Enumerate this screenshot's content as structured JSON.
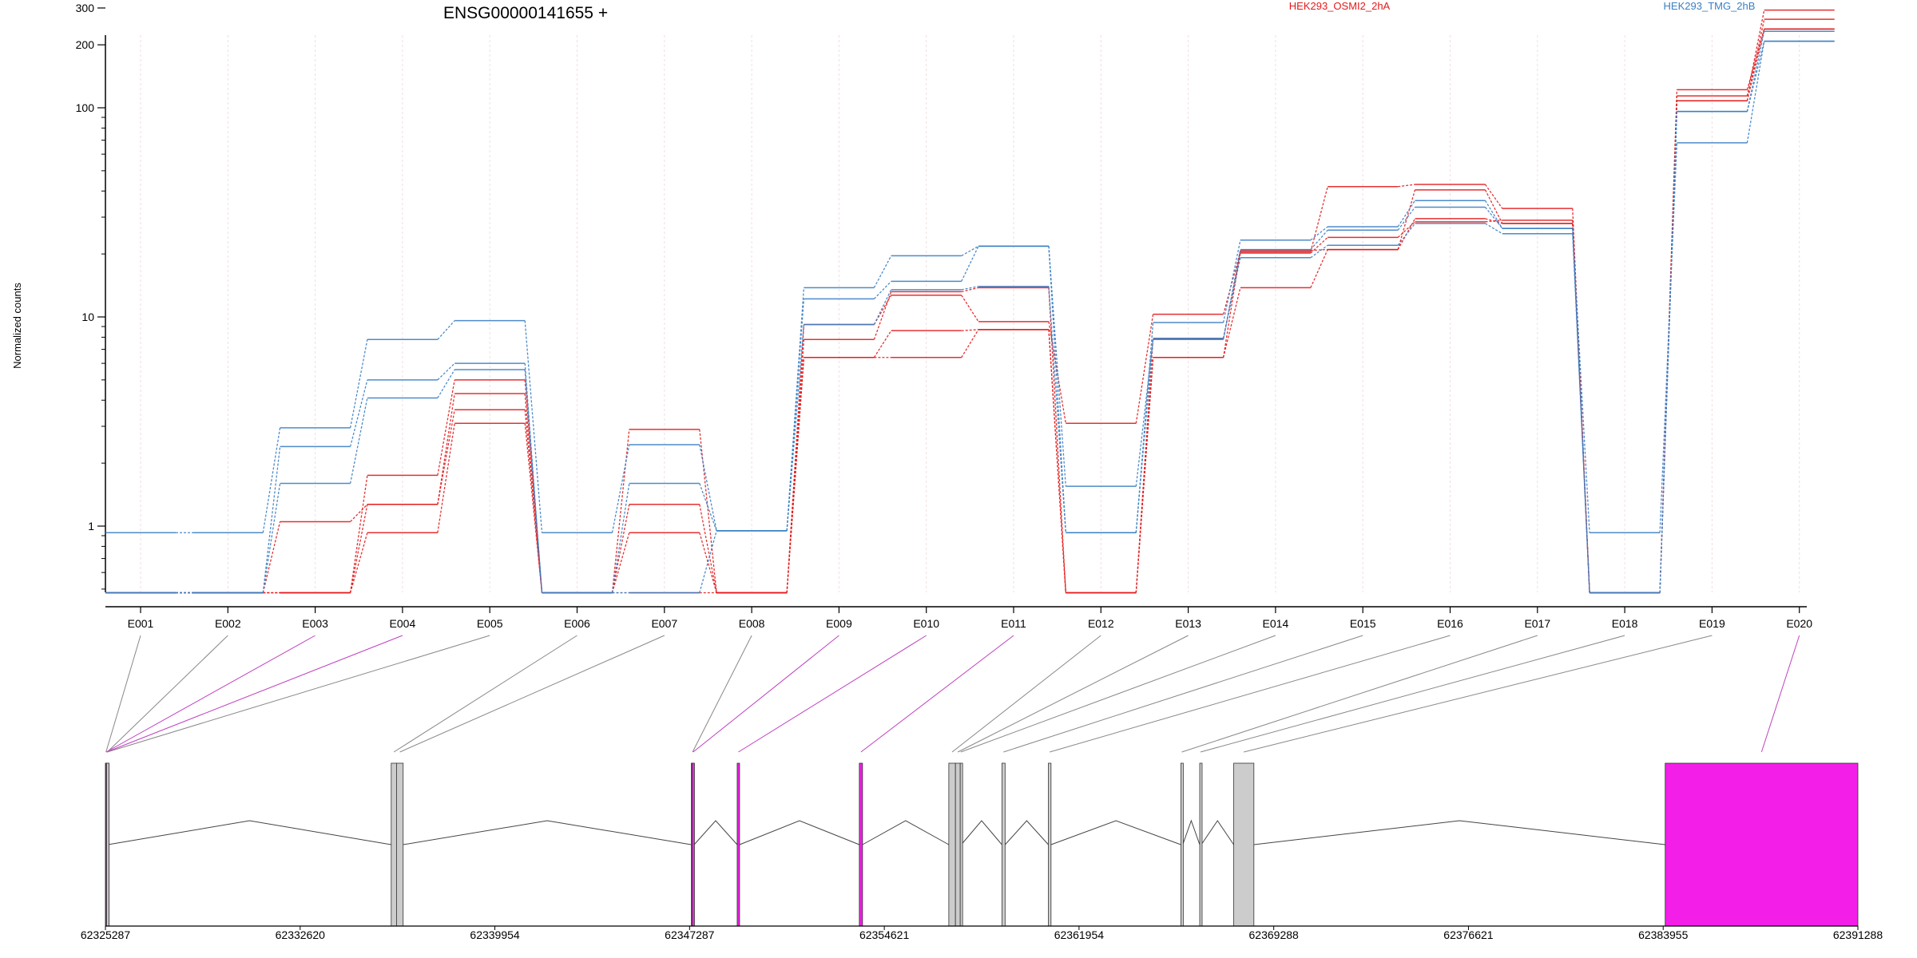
{
  "chart_data": {
    "type": "line",
    "title": "ENSG00000141655 +",
    "ylabel": "Normalized counts",
    "yscale": "log",
    "ylim": [
      0.5,
      400
    ],
    "yticks": [
      1,
      10,
      100,
      200,
      300
    ],
    "ytick_labels": [
      "1",
      "10",
      "100",
      "200",
      "300"
    ],
    "categories": [
      "E001",
      "E002",
      "E003",
      "E004",
      "E005",
      "E006",
      "E007",
      "E008",
      "E009",
      "E010",
      "E011",
      "E012",
      "E013",
      "E014",
      "E015",
      "E016",
      "E017",
      "E018",
      "E019",
      "E020"
    ],
    "legend": [
      {
        "label": "HEK293_OSMI2_2hA",
        "color": "#e31a1c"
      },
      {
        "label": "HEK293_TMG_2hB",
        "color": "#3a7fc4"
      }
    ],
    "series": [
      {
        "group": "OSMI2",
        "color": "#e31a1c",
        "values": [
          0.48,
          0.48,
          0.48,
          0.93,
          3.1,
          0.48,
          2.9,
          0.48,
          9.2,
          12.7,
          9.5,
          3.1,
          10.3,
          20.5,
          42,
          43,
          33,
          0.48,
          114,
          293
        ]
      },
      {
        "group": "OSMI2",
        "color": "#e31a1c",
        "values": [
          0.48,
          0.48,
          1.05,
          1.27,
          3.6,
          0.48,
          1.27,
          0.48,
          7.8,
          13.2,
          13.8,
          0.48,
          7.9,
          20.2,
          24,
          28.5,
          29,
          0.48,
          108,
          265
        ]
      },
      {
        "group": "OSMI2",
        "color": "#e31a1c",
        "values": [
          0.48,
          0.48,
          0.48,
          1.75,
          5.0,
          0.48,
          0.93,
          0.48,
          6.4,
          8.6,
          8.7,
          0.48,
          6.4,
          13.8,
          21,
          40.5,
          28,
          0.48,
          122,
          238
        ]
      },
      {
        "group": "OSMI2",
        "color": "#e31a1c",
        "values": [
          0.48,
          0.48,
          0.48,
          1.27,
          4.3,
          0.48,
          0.48,
          0.48,
          6.4,
          6.4,
          8.7,
          0.48,
          6.4,
          20.8,
          21,
          29.5,
          28,
          0.48,
          108,
          238
        ]
      },
      {
        "group": "TMG",
        "color": "#3a7fc4",
        "values": [
          0.93,
          0.93,
          2.95,
          7.8,
          9.6,
          0.93,
          2.45,
          0.95,
          13.8,
          19.6,
          21.8,
          0.93,
          9.4,
          23.3,
          27,
          36,
          26.5,
          0.93,
          68,
          208
        ]
      },
      {
        "group": "TMG",
        "color": "#3a7fc4",
        "values": [
          0.48,
          0.48,
          2.4,
          5.0,
          6.0,
          0.48,
          1.6,
          0.95,
          12.2,
          14.8,
          21.8,
          1.55,
          7.8,
          21,
          26,
          33.5,
          26.5,
          0.48,
          96,
          232
        ]
      },
      {
        "group": "TMG",
        "color": "#3a7fc4",
        "values": [
          0.48,
          0.48,
          1.6,
          4.1,
          5.6,
          0.48,
          0.48,
          0.95,
          9.2,
          13.5,
          14.0,
          0.93,
          7.9,
          19.2,
          22,
          28,
          25,
          0.48,
          96,
          208
        ]
      }
    ],
    "genomic_axis": {
      "tick_labels": [
        "62325287",
        "62332620",
        "62339954",
        "62347287",
        "62354621",
        "62361954",
        "62369288",
        "62376621",
        "62383955",
        "62391288"
      ],
      "range": [
        62325287,
        62391288
      ]
    },
    "exons": [
      {
        "id": "E001",
        "start": 62325287,
        "end": 62325330,
        "highlight": false
      },
      {
        "id": "E002",
        "start": 62325330,
        "end": 62325380,
        "highlight": false
      },
      {
        "id": "E003",
        "start": 62325290,
        "end": 62325340,
        "highlight": true
      },
      {
        "id": "E004",
        "start": 62325300,
        "end": 62325360,
        "highlight": true
      },
      {
        "id": "E005",
        "start": 62325330,
        "end": 62325380,
        "highlight": false
      },
      {
        "id": "E006",
        "start": 62336050,
        "end": 62336250,
        "highlight": false
      },
      {
        "id": "E007",
        "start": 62336250,
        "end": 62336500,
        "highlight": false
      },
      {
        "id": "E008",
        "start": 62347350,
        "end": 62347450,
        "highlight": false
      },
      {
        "id": "E009",
        "start": 62347380,
        "end": 62347460,
        "highlight": true
      },
      {
        "id": "E010",
        "start": 62349080,
        "end": 62349170,
        "highlight": true
      },
      {
        "id": "E011",
        "start": 62353680,
        "end": 62353800,
        "highlight": true
      },
      {
        "id": "E012",
        "start": 62357050,
        "end": 62357300,
        "highlight": false
      },
      {
        "id": "E013",
        "start": 62357300,
        "end": 62357480,
        "highlight": false
      },
      {
        "id": "E014",
        "start": 62357480,
        "end": 62357520,
        "highlight": false
      },
      {
        "id": "E015",
        "start": 62359050,
        "end": 62359170,
        "highlight": false
      },
      {
        "id": "E016",
        "start": 62360800,
        "end": 62360900,
        "highlight": false
      },
      {
        "id": "E017",
        "start": 62365790,
        "end": 62365860,
        "highlight": false
      },
      {
        "id": "E018",
        "start": 62366500,
        "end": 62366560,
        "highlight": false
      },
      {
        "id": "E019",
        "start": 62367780,
        "end": 62368540,
        "highlight": false
      },
      {
        "id": "E020",
        "start": 62384030,
        "end": 62391288,
        "highlight": true
      }
    ],
    "grid": true,
    "legend_position": "top-right"
  }
}
